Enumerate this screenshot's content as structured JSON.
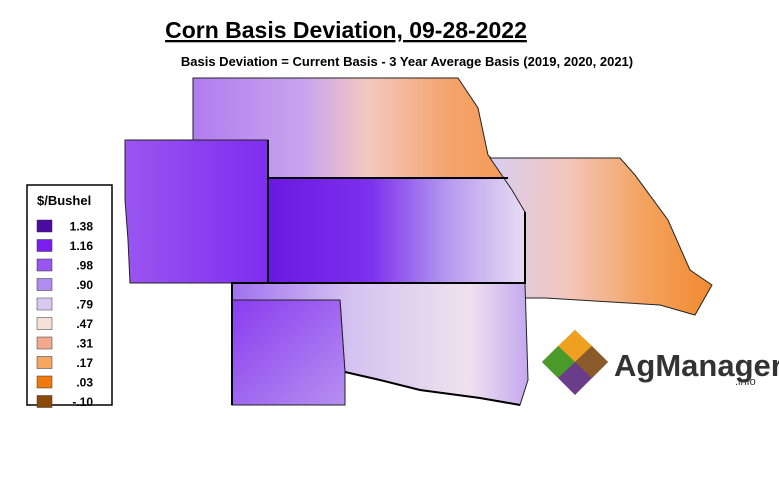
{
  "header": {
    "title": "Corn Basis Deviation, 09-28-2022",
    "subtitle": "Basis Deviation = Current Basis - 3 Year Average Basis (2019, 2020, 2021)"
  },
  "legend": {
    "title": "$/Bushel",
    "items": [
      {
        "label": "1.38",
        "color": "#4b0aa0"
      },
      {
        "label": "1.16",
        "color": "#7a1ef0"
      },
      {
        "label": ".98",
        "color": "#9955f0"
      },
      {
        "label": ".90",
        "color": "#b08cf0"
      },
      {
        "label": ".79",
        "color": "#d9c8f2"
      },
      {
        "label": ".47",
        "color": "#f6e1d8"
      },
      {
        "label": ".31",
        "color": "#f2a98e"
      },
      {
        "label": ".17",
        "color": "#f5a660"
      },
      {
        "label": ".03",
        "color": "#f07a10"
      },
      {
        "label": "-.10",
        "color": "#8a4a0a"
      }
    ]
  },
  "logo": {
    "name": "AgManager",
    "suffix": ".info"
  }
}
